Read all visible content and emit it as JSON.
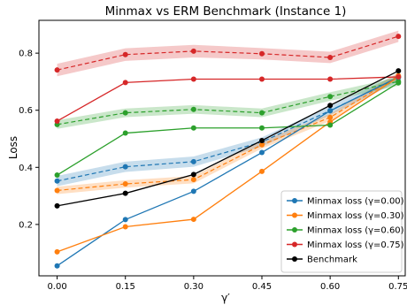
{
  "chart_data": {
    "type": "line",
    "title": "Minmax vs ERM Benchmark (Instance 1)",
    "xlabel": "γ′",
    "ylabel": "Loss",
    "x": [
      0.0,
      0.15,
      0.3,
      0.45,
      0.6,
      0.75
    ],
    "x_tick_labels": [
      "0.00",
      "0.15",
      "0.30",
      "0.45",
      "0.60",
      "0.75"
    ],
    "xlim": [
      -0.04,
      0.765
    ],
    "y_ticks": [
      0.2,
      0.4,
      0.6,
      0.8
    ],
    "y_tick_labels": [
      "0.2",
      "0.4",
      "0.6",
      "0.8"
    ],
    "ylim": [
      0.02,
      0.915
    ],
    "grid": false,
    "legend_position": "lower-right",
    "series": [
      {
        "name": "Minmax loss (γ=0.00)",
        "color": "#1f77b4",
        "values": [
          0.055,
          0.217,
          0.316,
          0.452,
          0.598,
          0.716
        ]
      },
      {
        "name": "Minmax loss (γ=0.30)",
        "color": "#ff7f0e",
        "values": [
          0.104,
          0.192,
          0.218,
          0.386,
          0.559,
          0.717
        ]
      },
      {
        "name": "Minmax loss (γ=0.60)",
        "color": "#2ca02c",
        "values": [
          0.373,
          0.52,
          0.538,
          0.538,
          0.548,
          0.696
        ]
      },
      {
        "name": "Minmax loss (γ=0.75)",
        "color": "#d62728",
        "values": [
          0.562,
          0.697,
          0.709,
          0.709,
          0.709,
          0.717
        ]
      },
      {
        "name": "Benchmark",
        "color": "#000000",
        "values": [
          0.265,
          0.309,
          0.375,
          0.494,
          0.617,
          0.738
        ]
      }
    ],
    "dashed_series": [
      {
        "color": "#1f77b4",
        "values": [
          0.352,
          0.402,
          0.42,
          0.489,
          0.599,
          0.714
        ],
        "band": [
          0.018,
          0.018,
          0.018,
          0.016,
          0.016,
          0.014
        ]
      },
      {
        "color": "#ff7f0e",
        "values": [
          0.319,
          0.342,
          0.357,
          0.479,
          0.575,
          0.721
        ],
        "band": [
          0.013,
          0.013,
          0.013,
          0.013,
          0.013,
          0.012
        ]
      },
      {
        "color": "#2ca02c",
        "values": [
          0.55,
          0.591,
          0.603,
          0.591,
          0.648,
          0.701
        ],
        "band": [
          0.015,
          0.015,
          0.015,
          0.015,
          0.015,
          0.015
        ]
      },
      {
        "color": "#d62728",
        "values": [
          0.741,
          0.795,
          0.807,
          0.798,
          0.785,
          0.859
        ],
        "band": [
          0.022,
          0.022,
          0.022,
          0.02,
          0.02,
          0.02
        ]
      }
    ]
  }
}
